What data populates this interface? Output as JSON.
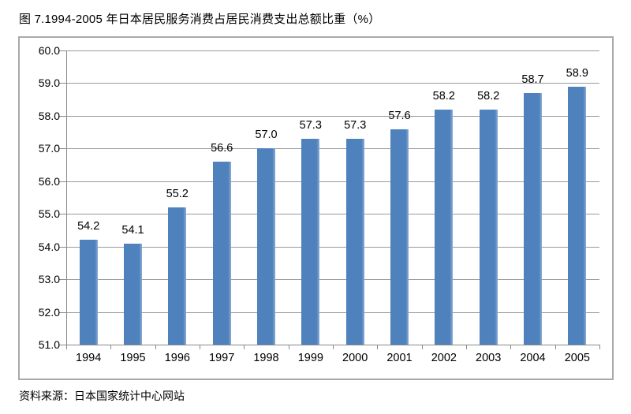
{
  "title": "图 7.1994-2005 年日本居民服务消费占居民消费支出总额比重（%）",
  "source": "资料来源：日本国家统计中心网站",
  "colors": {
    "bar": "#4f81bd",
    "bar_highlight": "#8bacd6",
    "grid": "#9a9a9a",
    "axis": "#8a8a8a",
    "frame_border": "#a9a9a9",
    "text": "#000000"
  },
  "chart_data": {
    "type": "bar",
    "title": "图 7.1994-2005 年日本居民服务消费占居民消费支出总额比重（%）",
    "categories": [
      "1994",
      "1995",
      "1996",
      "1997",
      "1998",
      "1999",
      "2000",
      "2001",
      "2002",
      "2003",
      "2004",
      "2005"
    ],
    "values": [
      54.2,
      54.1,
      55.2,
      56.6,
      57.0,
      57.3,
      57.3,
      57.6,
      58.2,
      58.2,
      58.7,
      58.9
    ],
    "value_labels": [
      "54.2",
      "54.1",
      "55.2",
      "56.6",
      "57.0",
      "57.3",
      "57.3",
      "57.6",
      "58.2",
      "58.2",
      "58.7",
      "58.9"
    ],
    "xlabel": "",
    "ylabel": "",
    "ylim": [
      51.0,
      60.0
    ],
    "ytick_step": 1.0,
    "ytick_labels": [
      "51.0",
      "52.0",
      "53.0",
      "54.0",
      "55.0",
      "56.0",
      "57.0",
      "58.0",
      "59.0",
      "60.0"
    ],
    "grid": true,
    "legend": false,
    "bar_slot_fraction": 0.41
  }
}
